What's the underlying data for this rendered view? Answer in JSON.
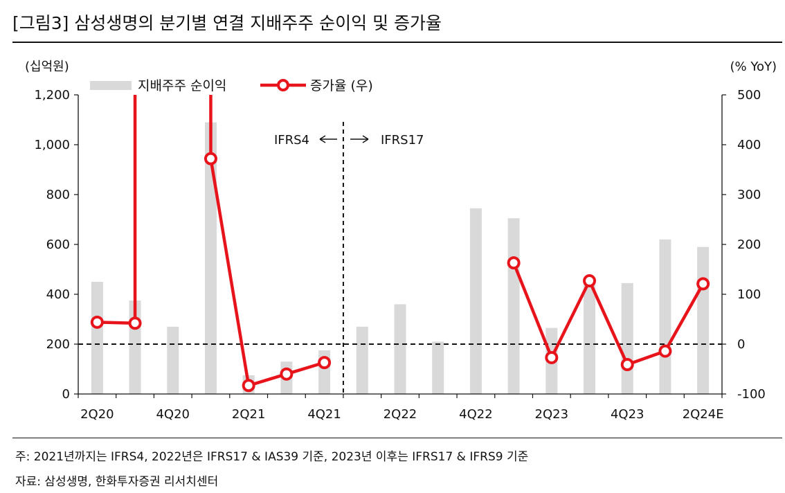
{
  "title": "[그림3]   삼성생명의 분기별 연결 지배주주 순이익 및 증가율",
  "footnotes": {
    "note": "주: 2021년까지는 IFRS4, 2022년은 IFRS17 & IAS39 기준, 2023년 이후는 IFRS17 & IFRS9 기준",
    "source": "자료: 삼성생명, 한화투자증권 리서치센터"
  },
  "chart_data": {
    "type": "bar",
    "categories": [
      "2Q20",
      "3Q20",
      "4Q20",
      "1Q21",
      "2Q21",
      "3Q21",
      "4Q21",
      "1Q22",
      "2Q22",
      "3Q22",
      "4Q22",
      "1Q23",
      "2Q23",
      "3Q23",
      "4Q23",
      "1Q24",
      "2Q24E"
    ],
    "x_tick_labels": [
      "2Q20",
      "",
      "4Q20",
      "",
      "2Q21",
      "",
      "4Q21",
      "",
      "2Q22",
      "",
      "4Q22",
      "",
      "2Q23",
      "",
      "4Q23",
      "",
      "2Q24E"
    ],
    "y_left": {
      "label": "(십억원)",
      "min": 0,
      "max": 1200,
      "ticks": [
        0,
        200,
        400,
        600,
        800,
        1000,
        1200
      ],
      "tick_labels": [
        "0",
        "200",
        "400",
        "600",
        "800",
        "1,000",
        "1,200"
      ]
    },
    "y_right": {
      "label": "(% YoY)",
      "min": -100,
      "max": 500,
      "ticks": [
        -100,
        0,
        100,
        200,
        300,
        400,
        500
      ],
      "tick_labels": [
        "-100",
        "0",
        "100",
        "200",
        "300",
        "400",
        "500"
      ]
    },
    "series": [
      {
        "name": "지배주주 순이익",
        "kind": "bar",
        "axis": "left",
        "color": "#d9d9d9",
        "values": [
          450,
          375,
          270,
          1090,
          75,
          130,
          175,
          270,
          360,
          210,
          745,
          705,
          265,
          460,
          445,
          620,
          590
        ]
      },
      {
        "name": "증가율 (우)",
        "kind": "line",
        "axis": "right",
        "color": "#e8141b",
        "values": [
          44,
          42,
          null,
          372,
          -83,
          -60,
          -37,
          null,
          null,
          null,
          null,
          163,
          -27,
          127,
          -41,
          -14,
          121
        ],
        "offscale_top_at": [
          1.5,
          2.5
        ]
      }
    ],
    "annotations": {
      "ifrs4": "IFRS4",
      "ifrs17": "IFRS17",
      "left_arrow": "←",
      "right_arrow": "→"
    },
    "grid": false,
    "legend_position": "top-left"
  }
}
